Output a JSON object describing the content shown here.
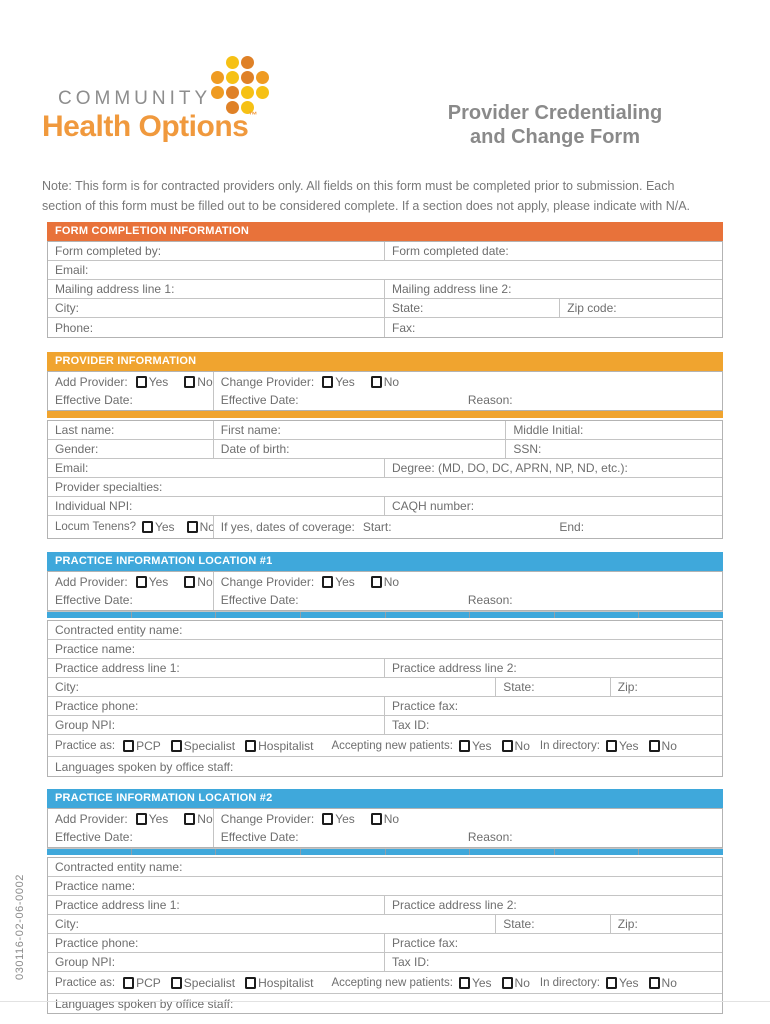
{
  "colors": {
    "section_orange": "#e8723a",
    "section_amber": "#f0a42f",
    "section_blue": "#3fa8db",
    "logo_orange": "#f0993d",
    "logo_gray": "#8d8d8d",
    "title_gray": "#8a8a8a",
    "dot_yellow": "#f6c115",
    "dot_orange": "#ef9b22",
    "dot_deep": "#df8127"
  },
  "logo": {
    "community": "COMMUNITY",
    "brand": "Health Options",
    "tm": "™",
    "dots": [
      [
        "",
        "yellow",
        "deep",
        ""
      ],
      [
        "orange",
        "yellow",
        "deep",
        "orange"
      ],
      [
        "orange",
        "deep",
        "yellow",
        "yellow"
      ],
      [
        "",
        "deep",
        "yellow",
        ""
      ]
    ]
  },
  "title": {
    "line1": "Provider Credentialing",
    "line2": "and Change Form"
  },
  "note": "Note: This form is for contracted providers only. All fields on this form must be completed prior to submission. Each section of this form must be filled out to be considered complete. If a section does not apply, please indicate with N/A.",
  "side_code": "030116-02-06-0002",
  "common": {
    "yes": "Yes",
    "no": "No",
    "add_provider": "Add Provider:",
    "change_provider": "Change Provider:",
    "effective_date": "Effective Date:",
    "reason": "Reason:"
  },
  "form_completion": {
    "header": "FORM COMPLETION INFORMATION",
    "completed_by": "Form completed by:",
    "completed_date": "Form completed date:",
    "email": "Email:",
    "mailing1": "Mailing address line 1:",
    "mailing2": "Mailing address line 2:",
    "city": "City:",
    "state": "State:",
    "zip": "Zip code:",
    "phone": "Phone:",
    "fax": "Fax:"
  },
  "provider": {
    "header": "PROVIDER INFORMATION",
    "last_name": "Last name:",
    "first_name": "First name:",
    "middle_initial": "Middle Initial:",
    "gender": "Gender:",
    "dob": "Date of birth:",
    "ssn": "SSN:",
    "email": "Email:",
    "degree": "Degree: (MD, DO, DC, APRN, NP, ND, etc.):",
    "specialties": "Provider specialties:",
    "npi": "Individual NPI:",
    "caqh": "CAQH number:",
    "locum": "Locum Tenens?",
    "if_yes": "If yes, dates of coverage:",
    "start": "Start:",
    "end": "End:"
  },
  "practice1": {
    "header": "PRACTICE INFORMATION LOCATION #1",
    "contracted": "Contracted entity name:",
    "name": "Practice name:",
    "addr1": "Practice address line 1:",
    "addr2": "Practice address line 2:",
    "city": "City:",
    "state": "State:",
    "zip": "Zip:",
    "phone": "Practice phone:",
    "fax": "Practice fax:",
    "group_npi": "Group NPI:",
    "tax_id": "Tax ID:",
    "practice_as": "Practice as:",
    "pcp": "PCP",
    "specialist": "Specialist",
    "hospitalist": "Hospitalist",
    "accepting": "Accepting new patients:",
    "in_directory": "In directory:",
    "languages": "Languages spoken by office staff:"
  },
  "practice2": {
    "header": "PRACTICE INFORMATION LOCATION #2",
    "contracted": "Contracted entity name:",
    "name": "Practice name:",
    "addr1": "Practice address line 1:",
    "addr2": "Practice address line 2:",
    "city": "City:",
    "state": "State:",
    "zip": "Zip:",
    "phone": "Practice phone:",
    "fax": "Practice fax:",
    "group_npi": "Group NPI:",
    "tax_id": "Tax ID:",
    "practice_as": "Practice as:",
    "pcp": "PCP",
    "specialist": "Specialist",
    "hospitalist": "Hospitalist",
    "accepting": "Accepting new patients:",
    "in_directory": "In directory:",
    "languages": "Languages spoken by office staff:"
  }
}
